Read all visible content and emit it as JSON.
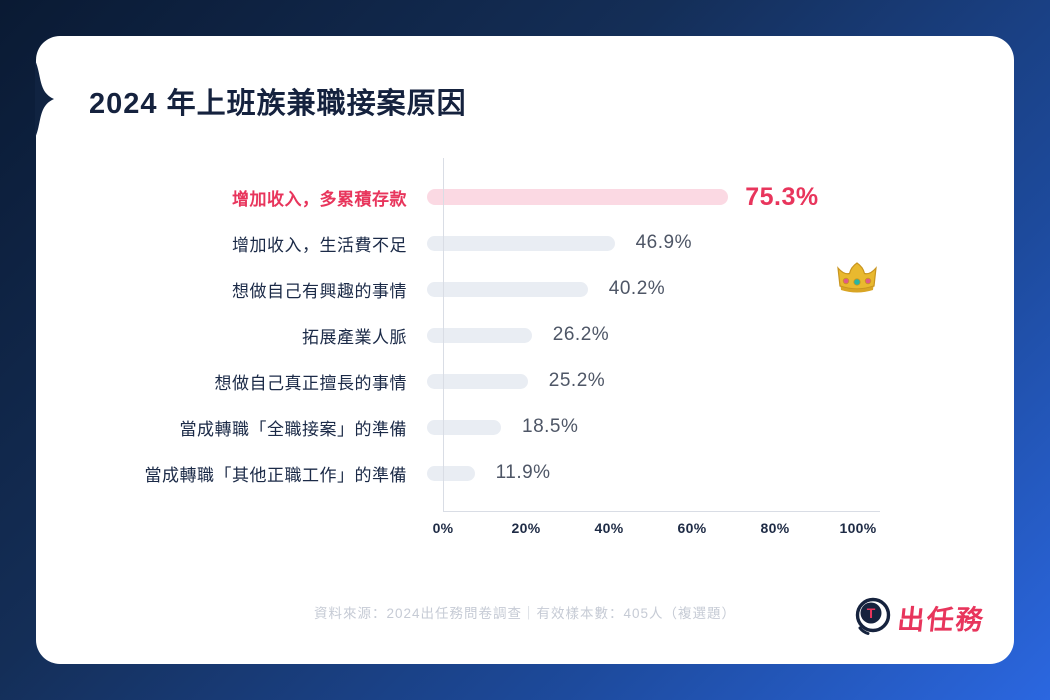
{
  "title": "2024 年上班族兼職接案原因",
  "chart_data": {
    "type": "bar",
    "orientation": "horizontal",
    "title": "2024 年上班族兼職接案原因",
    "categories": [
      "增加收入，多累積存款",
      "增加收入，生活費不足",
      "想做自己有興趣的事情",
      "拓展產業人脈",
      "想做自己真正擅長的事情",
      "當成轉職「全職接案」的準備",
      "當成轉職「其他正職工作」的準備"
    ],
    "values": [
      75.3,
      46.9,
      40.2,
      26.2,
      25.2,
      18.5,
      11.9
    ],
    "value_labels": [
      "75.3%",
      "46.9%",
      "40.2%",
      "26.2%",
      "25.2%",
      "18.5%",
      "11.9%"
    ],
    "x_ticks": [
      "0%",
      "20%",
      "40%",
      "60%",
      "80%",
      "100%"
    ],
    "xlim": [
      0,
      100
    ],
    "highlight_index": 0,
    "grid": "off",
    "legend": "none"
  },
  "colors": {
    "accent_pink": "#e8355c",
    "highlight_bar": "#fbd9e3",
    "bar_gray": "#e9edf3",
    "label_navy": "#1b2a47",
    "value_gray": "#4e5666",
    "axis_line": "#d9dde5",
    "footer_gray": "#c6cbd5",
    "bg_dark_navy": "#0a1a33",
    "bg_bright_blue": "#2b67e0",
    "card_white": "#ffffff"
  },
  "icons": {
    "crown": "👑",
    "logo_mark_letter": "T"
  },
  "footer": {
    "source": "資料來源：2024出任務問卷調查｜有效樣本數：405人（複選題）"
  },
  "logo": {
    "brand": "出任務"
  }
}
